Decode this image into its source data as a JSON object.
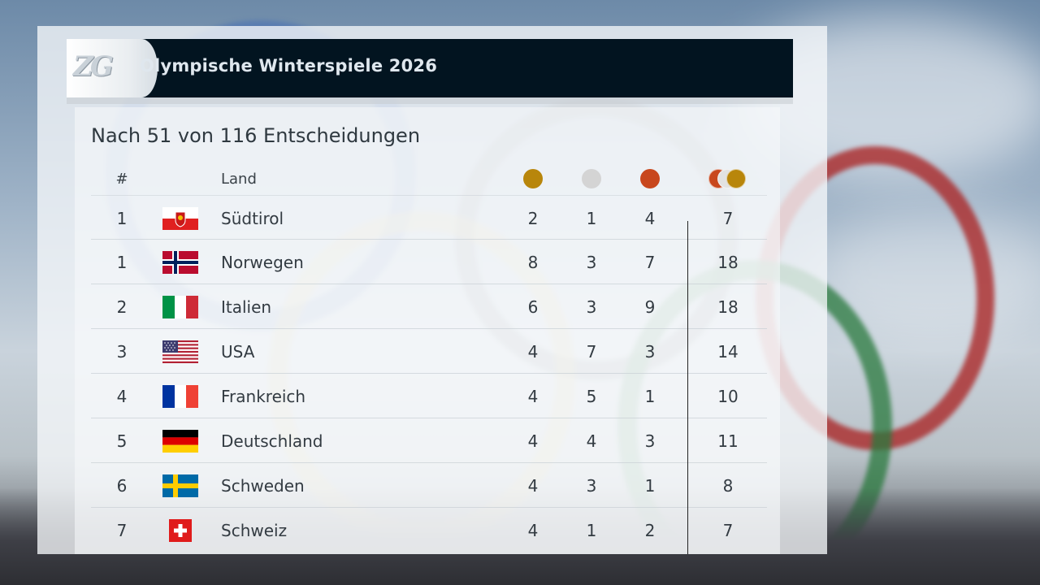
{
  "header": {
    "logo": "ZG",
    "title": "Olympische Winterspiele 2026"
  },
  "subtitle": "Nach 51 von 116 Entscheidungen",
  "columns": {
    "rank": "#",
    "land": "Land"
  },
  "colors": {
    "gold": "#b8860b",
    "silver": "#d4d4d4",
    "bronze": "#c8471d"
  },
  "rows": [
    {
      "rank": "1",
      "land": "Südtirol",
      "flag": "suedtirol-flag",
      "gold": "2",
      "silver": "1",
      "bronze": "4",
      "total": "7"
    },
    {
      "rank": "1",
      "land": "Norwegen",
      "flag": "norway-flag",
      "gold": "8",
      "silver": "3",
      "bronze": "7",
      "total": "18"
    },
    {
      "rank": "2",
      "land": "Italien",
      "flag": "italy-flag",
      "gold": "6",
      "silver": "3",
      "bronze": "9",
      "total": "18"
    },
    {
      "rank": "3",
      "land": "USA",
      "flag": "usa-flag",
      "gold": "4",
      "silver": "7",
      "bronze": "3",
      "total": "14"
    },
    {
      "rank": "4",
      "land": "Frankreich",
      "flag": "france-flag",
      "gold": "4",
      "silver": "5",
      "bronze": "1",
      "total": "10"
    },
    {
      "rank": "5",
      "land": "Deutschland",
      "flag": "germany-flag",
      "gold": "4",
      "silver": "4",
      "bronze": "3",
      "total": "11"
    },
    {
      "rank": "6",
      "land": "Schweden",
      "flag": "sweden-flag",
      "gold": "4",
      "silver": "3",
      "bronze": "1",
      "total": "8"
    },
    {
      "rank": "7",
      "land": "Schweiz",
      "flag": "switzerland-flag",
      "gold": "4",
      "silver": "1",
      "bronze": "2",
      "total": "7"
    }
  ]
}
